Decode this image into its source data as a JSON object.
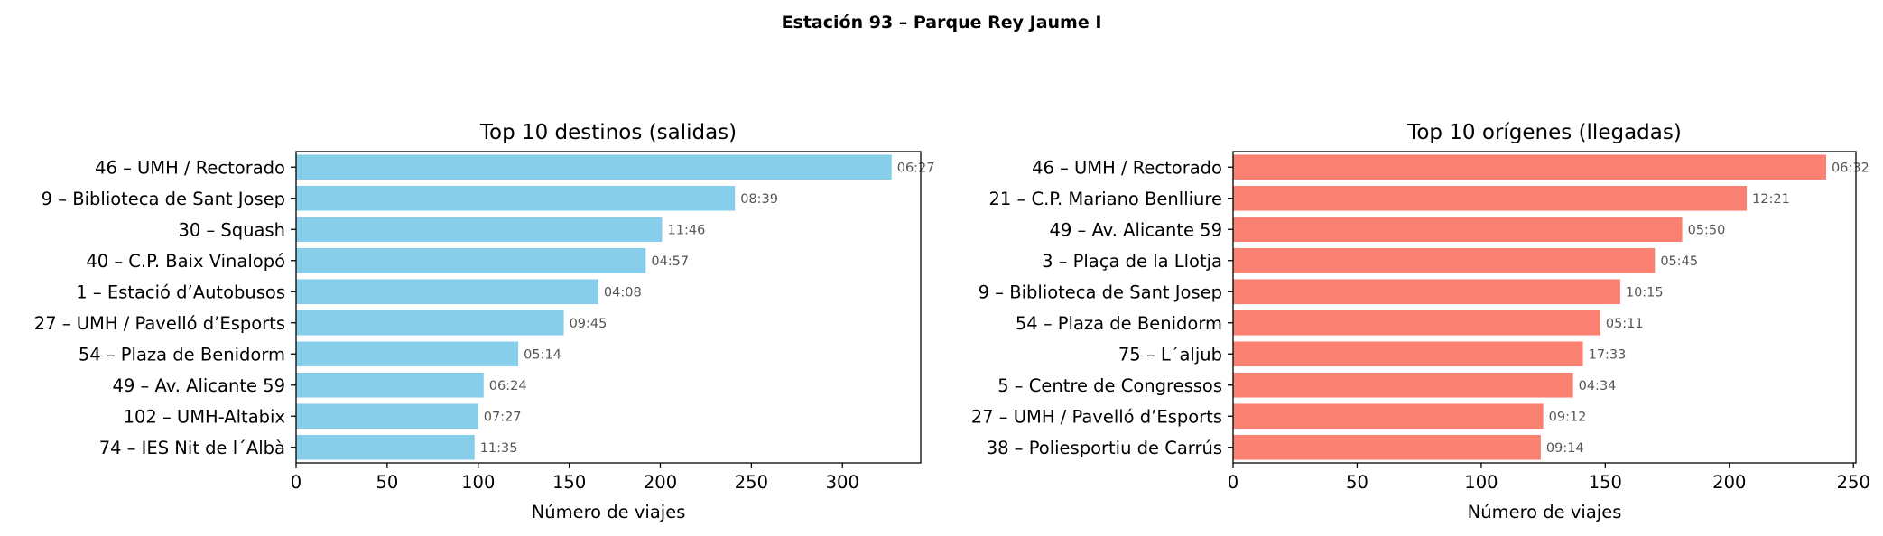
{
  "suptitle": "Estación 93 – Parque Rey Jaume I",
  "chart_data": [
    {
      "type": "bar",
      "orientation": "horizontal",
      "title": "Top 10 destinos (salidas)",
      "xlabel": "Número de viajes",
      "ylabel": "",
      "color": "#87ceeb",
      "xlim": [
        0,
        343
      ],
      "xticks": [
        0,
        50,
        100,
        150,
        200,
        250,
        300
      ],
      "grid": false,
      "categories": [
        "46 – UMH / Rectorado",
        "9 – Biblioteca de Sant Josep",
        "30 – Squash",
        "40 – C.P. Baix Vinalopó",
        "1 – Estació d’Autobusos",
        "27 – UMH / Pavelló d’Esports",
        "54 – Plaza de Benidorm",
        "49 – Av. Alicante 59",
        "102 – UMH-Altabix",
        "74 – IES Nit de l´Albà"
      ],
      "values": [
        327,
        241,
        201,
        192,
        166,
        147,
        122,
        103,
        100,
        98
      ],
      "labels": [
        "06:27",
        "08:39",
        "11:46",
        "04:57",
        "04:08",
        "09:45",
        "05:14",
        "06:24",
        "07:27",
        "11:35"
      ]
    },
    {
      "type": "bar",
      "orientation": "horizontal",
      "title": "Top 10 orígenes (llegadas)",
      "xlabel": "Número de viajes",
      "ylabel": "",
      "color": "#fa8072",
      "xlim": [
        0,
        251
      ],
      "xticks": [
        0,
        50,
        100,
        150,
        200,
        250
      ],
      "grid": false,
      "categories": [
        "46 – UMH / Rectorado",
        "21 – C.P. Mariano Benlliure",
        "49 – Av. Alicante 59",
        "3 – Plaça de la Llotja",
        "9 – Biblioteca de Sant Josep",
        "54 – Plaza de Benidorm",
        "75 – L´aljub",
        "5 – Centre de Congressos",
        "27 – UMH / Pavelló d’Esports",
        "38 – Poliesportiu de Carrús"
      ],
      "values": [
        239,
        207,
        181,
        170,
        156,
        148,
        141,
        137,
        125,
        124
      ],
      "labels": [
        "06:32",
        "12:21",
        "05:50",
        "05:45",
        "10:15",
        "05:11",
        "17:33",
        "04:34",
        "09:12",
        "09:14"
      ]
    }
  ]
}
